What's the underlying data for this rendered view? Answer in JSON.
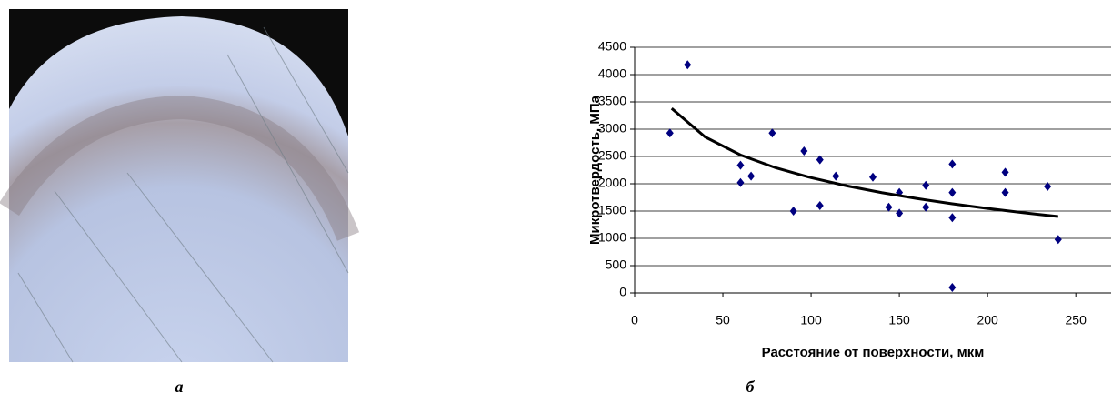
{
  "panel_labels": [
    "а",
    "б"
  ],
  "chart_data": {
    "type": "scatter",
    "xlabel": "Расстояние от поверхности, мкм",
    "ylabel": "Микротвердость, МПа",
    "series": [
      {
        "color": "#000080",
        "x": [
          20,
          30,
          60,
          60,
          66,
          78,
          90,
          96,
          105,
          105,
          114,
          135,
          144,
          150,
          150,
          165,
          165,
          180,
          180,
          180,
          180,
          210,
          210,
          234,
          240
        ],
        "values": [
          2930,
          4180,
          2340,
          2020,
          2140,
          2930,
          1500,
          2600,
          2440,
          1600,
          2140,
          2120,
          1570,
          1840,
          1460,
          1970,
          1570,
          2360,
          1840,
          1380,
          100,
          2210,
          1840,
          1950,
          980
        ]
      }
    ],
    "trendline": {
      "color": "#000000",
      "x": [
        21,
        40,
        60,
        80,
        100,
        120,
        140,
        160,
        180,
        200,
        220,
        240
      ],
      "values": [
        3380,
        2856,
        2527,
        2292,
        2111,
        1963,
        1837,
        1729,
        1633,
        1548,
        1470,
        1400
      ]
    },
    "xlim": [
      0,
      270
    ],
    "ylim": [
      0,
      4500
    ],
    "xticks": [
      0,
      50,
      100,
      150,
      200,
      250
    ],
    "yticks": [
      0,
      500,
      1000,
      1500,
      2000,
      2500,
      3000,
      3500,
      4000,
      4500
    ],
    "grid": true
  }
}
